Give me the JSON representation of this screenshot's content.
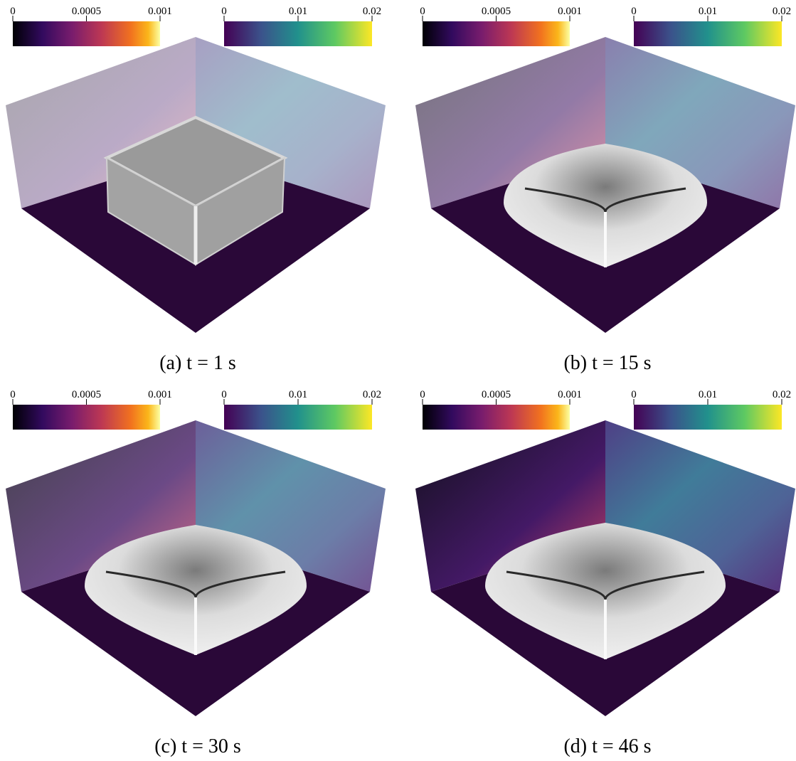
{
  "panels": [
    {
      "caption": "(a) t = 1 s",
      "colorbars": [
        {
          "ticks": [
            0,
            0.0005,
            0.001
          ]
        },
        {
          "ticks": [
            0,
            0.01,
            0.02
          ]
        }
      ]
    },
    {
      "caption": "(b) t = 15 s",
      "colorbars": [
        {
          "ticks": [
            0,
            0.0005,
            0.001
          ]
        },
        {
          "ticks": [
            0,
            0.01,
            0.02
          ]
        }
      ]
    },
    {
      "caption": "(c) t = 30 s",
      "colorbars": [
        {
          "ticks": [
            0,
            0.0005,
            0.001
          ]
        },
        {
          "ticks": [
            0,
            0.01,
            0.02
          ]
        }
      ]
    },
    {
      "caption": "(d) t = 46 s",
      "colorbars": [
        {
          "ticks": [
            0,
            0.0005,
            0.001
          ]
        },
        {
          "ticks": [
            0,
            0.01,
            0.02
          ]
        }
      ]
    }
  ]
}
